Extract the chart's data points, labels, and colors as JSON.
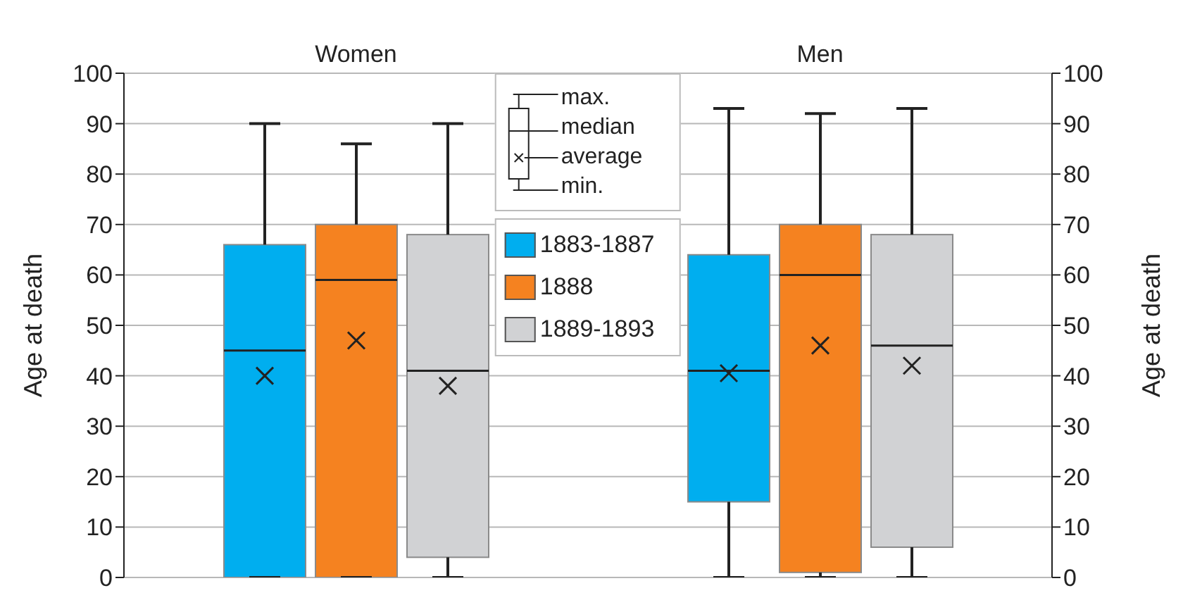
{
  "chart_data": {
    "type": "box",
    "categories": [
      "Women",
      "Men"
    ],
    "series": [
      {
        "name": "1883-1887",
        "color": "#00aeef",
        "boxes": [
          {
            "low": 0,
            "q1": 0,
            "median": 45,
            "q3": 66,
            "high": 90,
            "mean": 40
          },
          {
            "low": 0,
            "q1": 15,
            "median": 41,
            "q3": 64,
            "high": 93,
            "mean": 40.5
          }
        ]
      },
      {
        "name": "1888",
        "color": "#f58220",
        "boxes": [
          {
            "low": 0,
            "q1": 0,
            "median": 59,
            "q3": 70,
            "high": 86,
            "mean": 47
          },
          {
            "low": 0,
            "q1": 1,
            "median": 60,
            "q3": 70,
            "high": 92,
            "mean": 46
          }
        ]
      },
      {
        "name": "1889-1893",
        "color": "#d1d2d4",
        "boxes": [
          {
            "low": 0,
            "q1": 4,
            "median": 41,
            "q3": 68,
            "high": 90,
            "mean": 38
          },
          {
            "low": 0,
            "q1": 6,
            "median": 46,
            "q3": 68,
            "high": 93,
            "mean": 42
          }
        ]
      }
    ],
    "ylabel": "Age at death",
    "y2label": "Age at death",
    "ylim": [
      0,
      100
    ],
    "yticks": [
      0,
      10,
      20,
      30,
      40,
      50,
      60,
      70,
      80,
      90,
      100
    ],
    "y2lim": [
      0,
      100
    ],
    "y2ticks": [
      0,
      10,
      20,
      30,
      40,
      50,
      60,
      70,
      80,
      90,
      100
    ],
    "annotations": [
      "max.",
      "median",
      "average",
      "min."
    ],
    "grid": "y",
    "legend": "top"
  }
}
